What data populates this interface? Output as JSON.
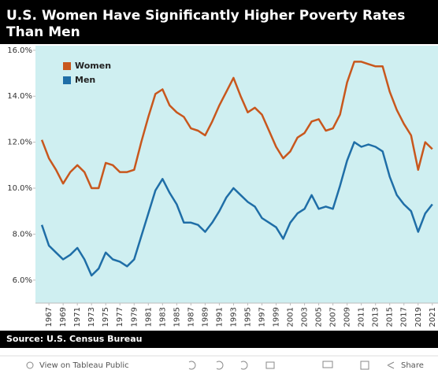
{
  "chart_data": {
    "type": "line",
    "title": "U.S. Women Have Significantly Higher Poverty Rates Than Men",
    "source": "Source: U.S. Census Bureau",
    "x": [
      1966,
      1967,
      1968,
      1969,
      1970,
      1971,
      1972,
      1973,
      1974,
      1975,
      1976,
      1977,
      1978,
      1979,
      1980,
      1981,
      1982,
      1983,
      1984,
      1985,
      1986,
      1987,
      1988,
      1989,
      1990,
      1991,
      1992,
      1993,
      1994,
      1995,
      1996,
      1997,
      1998,
      1999,
      2000,
      2001,
      2002,
      2003,
      2004,
      2005,
      2006,
      2007,
      2008,
      2009,
      2010,
      2011,
      2012,
      2013,
      2014,
      2015,
      2016,
      2017,
      2018,
      2019,
      2020,
      2021
    ],
    "series": [
      {
        "name": "Women",
        "color": "#c8571d",
        "values": [
          12.1,
          11.3,
          10.8,
          10.2,
          10.7,
          11.0,
          10.7,
          10.0,
          10.0,
          11.1,
          11.0,
          10.7,
          10.7,
          10.8,
          12.0,
          13.1,
          14.1,
          14.3,
          13.6,
          13.3,
          13.1,
          12.6,
          12.5,
          12.3,
          12.9,
          13.6,
          14.2,
          14.8,
          14.0,
          13.3,
          13.5,
          13.2,
          12.5,
          11.8,
          11.3,
          11.6,
          12.2,
          12.4,
          12.9,
          13.0,
          12.5,
          12.6,
          13.2,
          14.6,
          15.5,
          15.5,
          15.4,
          15.3,
          15.3,
          14.2,
          13.4,
          12.8,
          12.3,
          10.8,
          12.0,
          11.7
        ]
      },
      {
        "name": "Men",
        "color": "#1f6ea7",
        "values": [
          8.4,
          7.5,
          7.2,
          6.9,
          7.1,
          7.4,
          6.9,
          6.2,
          6.5,
          7.2,
          6.9,
          6.8,
          6.6,
          6.9,
          7.9,
          8.9,
          9.9,
          10.4,
          9.8,
          9.3,
          8.5,
          8.5,
          8.4,
          8.1,
          8.5,
          9.0,
          9.6,
          10.0,
          9.7,
          9.4,
          9.2,
          8.7,
          8.5,
          8.3,
          7.8,
          8.5,
          8.9,
          9.1,
          9.7,
          9.1,
          9.2,
          9.1,
          10.1,
          11.2,
          12.0,
          11.8,
          11.9,
          11.8,
          11.6,
          10.5,
          9.7,
          9.3,
          9.0,
          8.1,
          8.9,
          9.3
        ]
      }
    ],
    "xlim": [
      1965.1,
      2021.8
    ],
    "xticks": [
      1967,
      1969,
      1971,
      1973,
      1975,
      1977,
      1979,
      1981,
      1983,
      1985,
      1987,
      1989,
      1991,
      1993,
      1995,
      1997,
      1999,
      2001,
      2003,
      2005,
      2007,
      2009,
      2011,
      2013,
      2015,
      2017,
      2019,
      2021
    ],
    "ylim": [
      5,
      16.2
    ],
    "yticks": [
      {
        "value": 6,
        "label": "6.0%"
      },
      {
        "value": 8,
        "label": "8.0%"
      },
      {
        "value": 10,
        "label": "10.0%"
      },
      {
        "value": 12,
        "label": "12.0%"
      },
      {
        "value": 14,
        "label": "14.0%"
      },
      {
        "value": 16,
        "label": "16.0%"
      }
    ],
    "grid": false,
    "legend": "upper left"
  },
  "toolbar": {
    "view": "View on Tableau Public",
    "share": "Share"
  }
}
